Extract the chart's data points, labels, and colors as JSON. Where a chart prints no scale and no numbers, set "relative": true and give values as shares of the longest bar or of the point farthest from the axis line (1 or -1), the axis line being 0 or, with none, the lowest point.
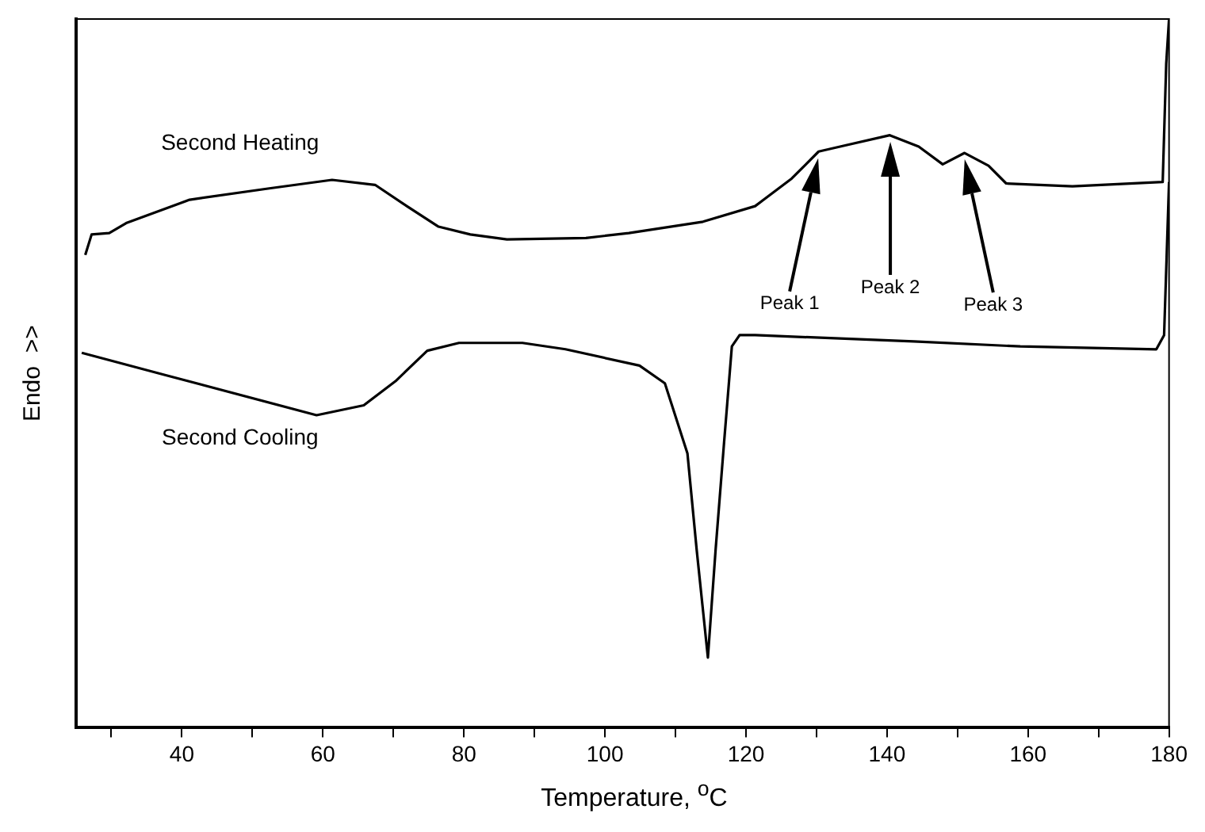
{
  "chart_data": {
    "type": "line",
    "xlabel": "Temperature, $^{o}$C",
    "ylabel": "Endo  >>",
    "relative": true,
    "grid": false,
    "legend": false,
    "marker": "none",
    "line_style": "solid",
    "xlim": [
      25,
      180
    ],
    "xticks": [
      {
        "value": 30,
        "label": null
      },
      40,
      {
        "value": 50,
        "label": null
      },
      60,
      {
        "value": 70,
        "label": null
      },
      80,
      {
        "value": 90,
        "label": null
      },
      100,
      {
        "value": 110,
        "label": null
      },
      120,
      {
        "value": 130,
        "label": null
      },
      140,
      {
        "value": 150,
        "label": null
      },
      160,
      {
        "value": 170,
        "label": null
      },
      180
    ],
    "series": [
      {
        "name": "Second Heating",
        "color": "#000000",
        "x": [
          26.3,
          27.2,
          29.7,
          32.1,
          41.1,
          52.4,
          61.3,
          67.4,
          71.9,
          76.4,
          80.9,
          86.1,
          97.3,
          103.4,
          113.9,
          121.3,
          126.5,
          130.3,
          134.2,
          140.4,
          144.5,
          147.9,
          151.0,
          154.4,
          156.9,
          166.3,
          179.1,
          179.6,
          180
        ],
        "values": [
          0.667,
          0.696,
          0.698,
          0.712,
          0.745,
          0.761,
          0.773,
          0.766,
          0.736,
          0.707,
          0.696,
          0.689,
          0.691,
          0.698,
          0.714,
          0.736,
          0.775,
          0.813,
          0.822,
          0.836,
          0.82,
          0.795,
          0.811,
          0.793,
          0.768,
          0.764,
          0.77,
          0.937,
          1.0
        ]
      },
      {
        "name": "Second Cooling",
        "color": "#000000",
        "x": [
          25.8,
          37.5,
          59.1,
          65.8,
          70.3,
          74.8,
          79.3,
          88.3,
          94.4,
          104.9,
          108.5,
          111.7,
          113.0,
          114.6,
          115.7,
          116.9,
          118.0,
          119.1,
          121.3,
          143.8,
          158.9,
          178.2,
          179.3,
          180
        ],
        "values": [
          0.529,
          0.498,
          0.441,
          0.455,
          0.489,
          0.532,
          0.543,
          0.543,
          0.534,
          0.511,
          0.486,
          0.387,
          0.252,
          0.099,
          0.252,
          0.403,
          0.538,
          0.554,
          0.554,
          0.545,
          0.538,
          0.534,
          0.554,
          0.77
        ]
      }
    ],
    "annotations": [
      "Peak 1",
      "Peak 2",
      "Peak 3"
    ]
  }
}
